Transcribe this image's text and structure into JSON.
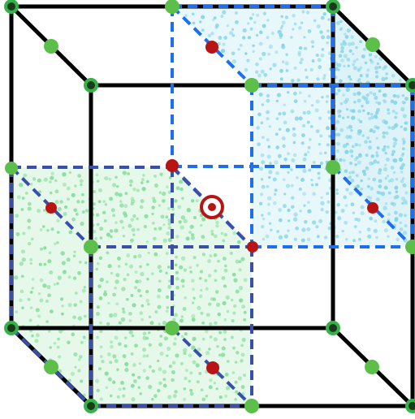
{
  "diagram": {
    "colors": {
      "background": "#ffffff",
      "cube_edge": "#000000",
      "blue_dashed": "#1E6FF0",
      "navy_dashed": "#3A4FA8",
      "blue_fill": "#cfeef5",
      "blue_dots": "#7fd3e6",
      "green_fill": "#d4f3dc",
      "green_dots": "#7fdc96",
      "green_node": "#5bbf4a",
      "green_node_dark": "#36b24a",
      "red_node": "#b81414",
      "target_ring": "#b81414"
    },
    "icons": {
      "vertex_node": "green-circle-node",
      "midpoint_node": "green-dot-node",
      "face_center_node": "red-dot-node",
      "center_marker": "target-ring-icon"
    }
  }
}
